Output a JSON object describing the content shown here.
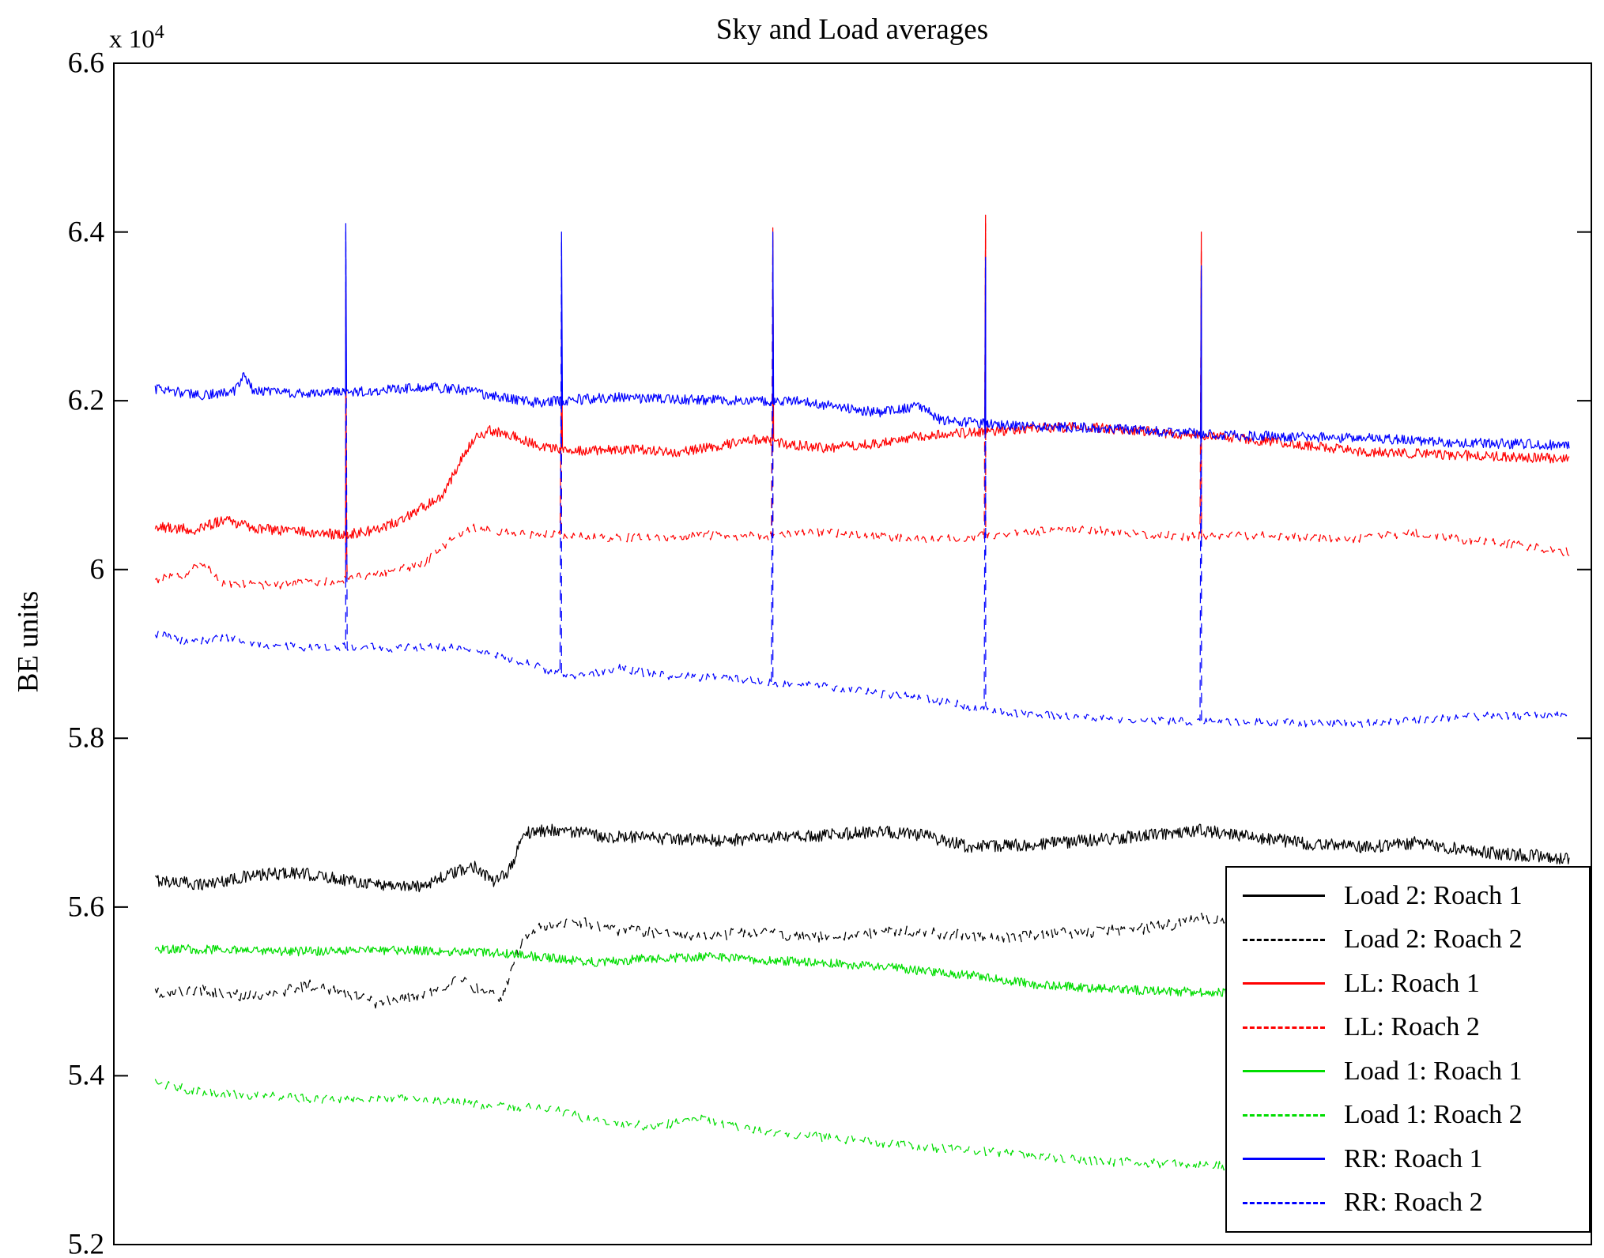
{
  "chart_data": {
    "type": "line",
    "title": "Sky and Load averages",
    "ylabel": "BE units",
    "xlabel": "",
    "grid": false,
    "legend_position": "lower right",
    "y_axis": {
      "min": 5.2,
      "max": 6.6,
      "scale_factor": 10000,
      "exponent_prefix": "x 10",
      "exponent": "4",
      "tick_values": [
        5.2,
        5.4,
        5.6,
        5.8,
        6.0,
        6.2,
        6.4,
        6.6
      ],
      "tick_labels": [
        "5.2",
        "5.4",
        "5.6",
        "5.8",
        "6",
        "6.2",
        "6.4",
        "6.6"
      ]
    },
    "x_axis": {
      "tick_labels": []
    },
    "spike_positions": [
      0.157,
      0.303,
      0.446,
      0.59,
      0.736
    ],
    "series": [
      {
        "name": "Load 2: Roach 1",
        "color": "#000000",
        "dash": false,
        "noise": 0.0075,
        "spike_peaks": null,
        "keypoints": [
          [
            0.028,
            5.632
          ],
          [
            0.06,
            5.627
          ],
          [
            0.09,
            5.636
          ],
          [
            0.12,
            5.641
          ],
          [
            0.15,
            5.634
          ],
          [
            0.18,
            5.627
          ],
          [
            0.205,
            5.624
          ],
          [
            0.225,
            5.637
          ],
          [
            0.245,
            5.649
          ],
          [
            0.258,
            5.628
          ],
          [
            0.268,
            5.645
          ],
          [
            0.278,
            5.688
          ],
          [
            0.3,
            5.692
          ],
          [
            0.33,
            5.684
          ],
          [
            0.37,
            5.681
          ],
          [
            0.41,
            5.679
          ],
          [
            0.45,
            5.682
          ],
          [
            0.49,
            5.686
          ],
          [
            0.52,
            5.69
          ],
          [
            0.55,
            5.684
          ],
          [
            0.58,
            5.671
          ],
          [
            0.62,
            5.674
          ],
          [
            0.66,
            5.679
          ],
          [
            0.7,
            5.685
          ],
          [
            0.735,
            5.691
          ],
          [
            0.77,
            5.683
          ],
          [
            0.81,
            5.675
          ],
          [
            0.85,
            5.671
          ],
          [
            0.88,
            5.676
          ],
          [
            0.91,
            5.669
          ],
          [
            0.94,
            5.663
          ],
          [
            0.97,
            5.66
          ],
          [
            0.985,
            5.657
          ]
        ]
      },
      {
        "name": "Load 2: Roach 2",
        "color": "#000000",
        "dash": true,
        "noise": 0.007,
        "spike_peaks": null,
        "keypoints": [
          [
            0.028,
            5.497
          ],
          [
            0.06,
            5.501
          ],
          [
            0.09,
            5.494
          ],
          [
            0.115,
            5.501
          ],
          [
            0.135,
            5.508
          ],
          [
            0.155,
            5.499
          ],
          [
            0.175,
            5.487
          ],
          [
            0.195,
            5.49
          ],
          [
            0.215,
            5.499
          ],
          [
            0.232,
            5.514
          ],
          [
            0.25,
            5.5
          ],
          [
            0.262,
            5.49
          ],
          [
            0.275,
            5.556
          ],
          [
            0.29,
            5.578
          ],
          [
            0.31,
            5.584
          ],
          [
            0.335,
            5.574
          ],
          [
            0.365,
            5.569
          ],
          [
            0.4,
            5.567
          ],
          [
            0.44,
            5.57
          ],
          [
            0.47,
            5.564
          ],
          [
            0.5,
            5.567
          ],
          [
            0.53,
            5.571
          ],
          [
            0.56,
            5.569
          ],
          [
            0.6,
            5.564
          ],
          [
            0.64,
            5.569
          ],
          [
            0.68,
            5.572
          ],
          [
            0.71,
            5.577
          ],
          [
            0.74,
            5.587
          ],
          [
            0.77,
            5.581
          ],
          [
            0.8,
            5.571
          ],
          [
            0.84,
            5.569
          ],
          [
            0.88,
            5.567
          ],
          [
            0.92,
            5.571
          ],
          [
            0.95,
            5.569
          ],
          [
            0.985,
            5.567
          ]
        ]
      },
      {
        "name": "LL: Roach 1",
        "color": "#ff0000",
        "dash": false,
        "noise": 0.006,
        "spike_peaks": [
          6.33,
          6.3,
          6.405,
          6.42,
          6.4
        ],
        "keypoints": [
          [
            0.028,
            6.051
          ],
          [
            0.055,
            6.047
          ],
          [
            0.075,
            6.059
          ],
          [
            0.095,
            6.049
          ],
          [
            0.115,
            6.046
          ],
          [
            0.135,
            6.044
          ],
          [
            0.155,
            6.041
          ],
          [
            0.175,
            6.046
          ],
          [
            0.195,
            6.059
          ],
          [
            0.21,
            6.075
          ],
          [
            0.222,
            6.085
          ],
          [
            0.232,
            6.12
          ],
          [
            0.242,
            6.152
          ],
          [
            0.255,
            6.165
          ],
          [
            0.27,
            6.158
          ],
          [
            0.29,
            6.145
          ],
          [
            0.32,
            6.141
          ],
          [
            0.35,
            6.143
          ],
          [
            0.38,
            6.139
          ],
          [
            0.41,
            6.147
          ],
          [
            0.435,
            6.154
          ],
          [
            0.455,
            6.149
          ],
          [
            0.48,
            6.144
          ],
          [
            0.51,
            6.148
          ],
          [
            0.545,
            6.158
          ],
          [
            0.58,
            6.162
          ],
          [
            0.62,
            6.167
          ],
          [
            0.655,
            6.169
          ],
          [
            0.69,
            6.165
          ],
          [
            0.73,
            6.159
          ],
          [
            0.77,
            6.154
          ],
          [
            0.81,
            6.147
          ],
          [
            0.85,
            6.139
          ],
          [
            0.89,
            6.137
          ],
          [
            0.93,
            6.134
          ],
          [
            0.985,
            6.131
          ]
        ]
      },
      {
        "name": "LL: Roach 2",
        "color": "#ff0000",
        "dash": true,
        "noise": 0.0055,
        "spike_peaks": [
          6.1,
          6.22,
          6.39,
          6.41,
          6.38
        ],
        "keypoints": [
          [
            0.028,
            5.989
          ],
          [
            0.048,
            5.994
          ],
          [
            0.06,
            6.008
          ],
          [
            0.072,
            5.984
          ],
          [
            0.1,
            5.981
          ],
          [
            0.13,
            5.984
          ],
          [
            0.16,
            5.989
          ],
          [
            0.19,
            5.999
          ],
          [
            0.21,
            6.008
          ],
          [
            0.226,
            6.033
          ],
          [
            0.242,
            6.049
          ],
          [
            0.262,
            6.044
          ],
          [
            0.29,
            6.041
          ],
          [
            0.32,
            6.039
          ],
          [
            0.36,
            6.037
          ],
          [
            0.4,
            6.041
          ],
          [
            0.44,
            6.039
          ],
          [
            0.48,
            6.044
          ],
          [
            0.52,
            6.039
          ],
          [
            0.55,
            6.034
          ],
          [
            0.58,
            6.039
          ],
          [
            0.62,
            6.044
          ],
          [
            0.65,
            6.049
          ],
          [
            0.68,
            6.044
          ],
          [
            0.72,
            6.039
          ],
          [
            0.76,
            6.041
          ],
          [
            0.8,
            6.039
          ],
          [
            0.84,
            6.037
          ],
          [
            0.88,
            6.044
          ],
          [
            0.92,
            6.034
          ],
          [
            0.95,
            6.029
          ],
          [
            0.985,
            6.021
          ]
        ]
      },
      {
        "name": "Load 1: Roach 1",
        "color": "#00dd00",
        "dash": false,
        "noise": 0.0055,
        "spike_peaks": null,
        "keypoints": [
          [
            0.028,
            5.551
          ],
          [
            0.08,
            5.549
          ],
          [
            0.12,
            5.547
          ],
          [
            0.16,
            5.549
          ],
          [
            0.2,
            5.549
          ],
          [
            0.24,
            5.547
          ],
          [
            0.27,
            5.544
          ],
          [
            0.3,
            5.539
          ],
          [
            0.33,
            5.534
          ],
          [
            0.36,
            5.539
          ],
          [
            0.4,
            5.541
          ],
          [
            0.44,
            5.537
          ],
          [
            0.48,
            5.534
          ],
          [
            0.52,
            5.529
          ],
          [
            0.55,
            5.524
          ],
          [
            0.58,
            5.519
          ],
          [
            0.62,
            5.509
          ],
          [
            0.66,
            5.504
          ],
          [
            0.7,
            5.501
          ],
          [
            0.74,
            5.499
          ],
          [
            0.78,
            5.497
          ],
          [
            0.82,
            5.495
          ],
          [
            0.86,
            5.494
          ],
          [
            0.9,
            5.493
          ],
          [
            0.94,
            5.492
          ],
          [
            0.985,
            5.491
          ]
        ]
      },
      {
        "name": "Load 1: Roach 2",
        "color": "#00dd00",
        "dash": true,
        "noise": 0.0055,
        "spike_peaks": null,
        "keypoints": [
          [
            0.028,
            5.391
          ],
          [
            0.06,
            5.381
          ],
          [
            0.09,
            5.377
          ],
          [
            0.12,
            5.374
          ],
          [
            0.15,
            5.371
          ],
          [
            0.18,
            5.374
          ],
          [
            0.21,
            5.371
          ],
          [
            0.24,
            5.367
          ],
          [
            0.27,
            5.364
          ],
          [
            0.3,
            5.359
          ],
          [
            0.32,
            5.349
          ],
          [
            0.34,
            5.344
          ],
          [
            0.36,
            5.341
          ],
          [
            0.38,
            5.344
          ],
          [
            0.4,
            5.349
          ],
          [
            0.42,
            5.339
          ],
          [
            0.44,
            5.334
          ],
          [
            0.47,
            5.329
          ],
          [
            0.5,
            5.324
          ],
          [
            0.53,
            5.319
          ],
          [
            0.56,
            5.314
          ],
          [
            0.6,
            5.309
          ],
          [
            0.63,
            5.304
          ],
          [
            0.66,
            5.299
          ],
          [
            0.7,
            5.297
          ],
          [
            0.74,
            5.294
          ],
          [
            0.78,
            5.291
          ],
          [
            0.82,
            5.289
          ],
          [
            0.86,
            5.289
          ],
          [
            0.9,
            5.287
          ],
          [
            0.94,
            5.289
          ],
          [
            0.985,
            5.289
          ]
        ]
      },
      {
        "name": "RR: Roach 1",
        "color": "#0000ff",
        "dash": false,
        "noise": 0.006,
        "spike_peaks": [
          6.41,
          6.4,
          6.4,
          6.37,
          6.36
        ],
        "keypoints": [
          [
            0.028,
            6.214
          ],
          [
            0.06,
            6.206
          ],
          [
            0.082,
            6.212
          ],
          [
            0.088,
            6.232
          ],
          [
            0.094,
            6.213
          ],
          [
            0.12,
            6.209
          ],
          [
            0.15,
            6.211
          ],
          [
            0.18,
            6.212
          ],
          [
            0.21,
            6.217
          ],
          [
            0.235,
            6.213
          ],
          [
            0.26,
            6.204
          ],
          [
            0.285,
            6.198
          ],
          [
            0.31,
            6.201
          ],
          [
            0.34,
            6.204
          ],
          [
            0.37,
            6.202
          ],
          [
            0.41,
            6.201
          ],
          [
            0.44,
            6.2
          ],
          [
            0.465,
            6.199
          ],
          [
            0.49,
            6.193
          ],
          [
            0.515,
            6.186
          ],
          [
            0.53,
            6.189
          ],
          [
            0.545,
            6.194
          ],
          [
            0.56,
            6.177
          ],
          [
            0.6,
            6.171
          ],
          [
            0.64,
            6.169
          ],
          [
            0.68,
            6.167
          ],
          [
            0.72,
            6.162
          ],
          [
            0.76,
            6.159
          ],
          [
            0.8,
            6.157
          ],
          [
            0.85,
            6.156
          ],
          [
            0.9,
            6.151
          ],
          [
            0.95,
            6.149
          ],
          [
            0.985,
            6.147
          ]
        ]
      },
      {
        "name": "RR: Roach 2",
        "color": "#0000ff",
        "dash": true,
        "noise": 0.005,
        "spike_peaks": [
          6.4,
          6.39,
          6.37,
          6.36,
          6.35
        ],
        "keypoints": [
          [
            0.028,
            5.924
          ],
          [
            0.05,
            5.914
          ],
          [
            0.08,
            5.919
          ],
          [
            0.1,
            5.911
          ],
          [
            0.13,
            5.907
          ],
          [
            0.16,
            5.909
          ],
          [
            0.19,
            5.907
          ],
          [
            0.22,
            5.909
          ],
          [
            0.24,
            5.904
          ],
          [
            0.26,
            5.899
          ],
          [
            0.28,
            5.889
          ],
          [
            0.3,
            5.877
          ],
          [
            0.32,
            5.874
          ],
          [
            0.34,
            5.884
          ],
          [
            0.36,
            5.877
          ],
          [
            0.38,
            5.874
          ],
          [
            0.41,
            5.871
          ],
          [
            0.44,
            5.867
          ],
          [
            0.46,
            5.864
          ],
          [
            0.48,
            5.861
          ],
          [
            0.5,
            5.857
          ],
          [
            0.53,
            5.851
          ],
          [
            0.56,
            5.844
          ],
          [
            0.58,
            5.837
          ],
          [
            0.6,
            5.831
          ],
          [
            0.63,
            5.827
          ],
          [
            0.66,
            5.824
          ],
          [
            0.7,
            5.822
          ],
          [
            0.74,
            5.819
          ],
          [
            0.78,
            5.819
          ],
          [
            0.82,
            5.817
          ],
          [
            0.86,
            5.819
          ],
          [
            0.9,
            5.824
          ],
          [
            0.94,
            5.827
          ],
          [
            0.985,
            5.827
          ]
        ]
      }
    ]
  }
}
